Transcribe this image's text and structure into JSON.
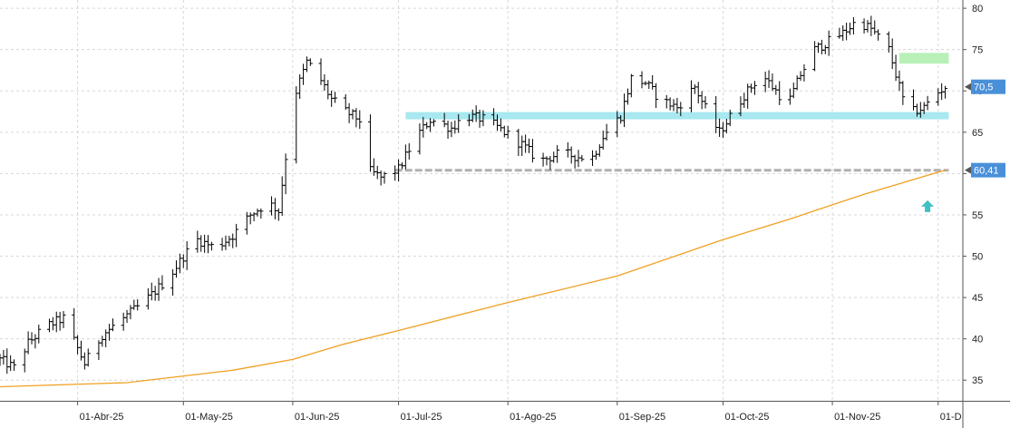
{
  "chart_data": {
    "type": "ohlc",
    "grid": true,
    "y_axis_position": "right",
    "ylim": [
      32.5,
      81
    ],
    "y_ticks": [
      35,
      40,
      45,
      50,
      55,
      60,
      65,
      70,
      75,
      80
    ],
    "x_ticks": [
      {
        "date": "2025-04-01",
        "label": "01-Abr-25"
      },
      {
        "date": "2025-05-01",
        "label": "01-May-25"
      },
      {
        "date": "2025-06-01",
        "label": "01-Jun-25"
      },
      {
        "date": "2025-07-01",
        "label": "01-Jul-25"
      },
      {
        "date": "2025-08-01",
        "label": "01-Ago-25"
      },
      {
        "date": "2025-09-01",
        "label": "01-Sep-25"
      },
      {
        "date": "2025-10-01",
        "label": "01-Oct-25"
      },
      {
        "date": "2025-11-01",
        "label": "01-Nov-25"
      },
      {
        "date": "2025-12-01",
        "label": "01-D"
      }
    ],
    "xlim": [
      "2025-03-10",
      "2025-12-08"
    ],
    "price_anchors": [
      [
        "2025-03-10",
        37.5
      ],
      [
        "2025-03-14",
        36.5
      ],
      [
        "2025-03-18",
        39.5
      ],
      [
        "2025-03-23",
        41.5
      ],
      [
        "2025-03-28",
        42.5
      ],
      [
        "2025-04-03",
        37.0
      ],
      [
        "2025-04-08",
        40.5
      ],
      [
        "2025-04-14",
        42.5
      ],
      [
        "2025-04-20",
        44.5
      ],
      [
        "2025-04-27",
        47.5
      ],
      [
        "2025-05-01",
        50.0
      ],
      [
        "2025-05-05",
        52.0
      ],
      [
        "2025-05-10",
        51.0
      ],
      [
        "2025-05-15",
        52.5
      ],
      [
        "2025-05-20",
        55.0
      ],
      [
        "2025-05-25",
        56.5
      ],
      [
        "2025-05-28",
        55.5
      ],
      [
        "2025-05-30",
        62.0
      ],
      [
        "2025-06-02",
        70.0
      ],
      [
        "2025-06-05",
        73.5
      ],
      [
        "2025-06-08",
        72.0
      ],
      [
        "2025-06-12",
        69.0
      ],
      [
        "2025-06-16",
        67.5
      ],
      [
        "2025-06-20",
        66.5
      ],
      [
        "2025-06-22",
        60.5
      ],
      [
        "2025-06-26",
        59.5
      ],
      [
        "2025-07-01",
        60.5
      ],
      [
        "2025-07-06",
        64.5
      ],
      [
        "2025-07-10",
        66.5
      ],
      [
        "2025-07-16",
        65.5
      ],
      [
        "2025-07-20",
        67.0
      ],
      [
        "2025-07-26",
        66.5
      ],
      [
        "2025-07-31",
        65.0
      ],
      [
        "2025-08-05",
        63.5
      ],
      [
        "2025-08-10",
        61.5
      ],
      [
        "2025-08-16",
        62.5
      ],
      [
        "2025-08-21",
        62.0
      ],
      [
        "2025-08-25",
        62.0
      ],
      [
        "2025-08-28",
        64.5
      ],
      [
        "2025-09-02",
        67.0
      ],
      [
        "2025-09-05",
        71.5
      ],
      [
        "2025-09-09",
        71.0
      ],
      [
        "2025-09-13",
        69.0
      ],
      [
        "2025-09-18",
        68.0
      ],
      [
        "2025-09-23",
        70.5
      ],
      [
        "2025-09-27",
        67.0
      ],
      [
        "2025-09-30",
        65.0
      ],
      [
        "2025-10-04",
        67.5
      ],
      [
        "2025-10-07",
        69.5
      ],
      [
        "2025-10-12",
        72.0
      ],
      [
        "2025-10-17",
        69.5
      ],
      [
        "2025-10-20",
        69.0
      ],
      [
        "2025-10-23",
        72.0
      ],
      [
        "2025-10-27",
        75.0
      ],
      [
        "2025-10-31",
        76.0
      ],
      [
        "2025-11-04",
        77.0
      ],
      [
        "2025-11-08",
        78.5
      ],
      [
        "2025-11-12",
        77.5
      ],
      [
        "2025-11-17",
        75.0
      ],
      [
        "2025-11-21",
        69.0
      ],
      [
        "2025-11-24",
        67.5
      ],
      [
        "2025-11-27",
        68.0
      ],
      [
        "2025-11-30",
        69.5
      ],
      [
        "2025-12-03",
        70.5
      ]
    ],
    "moving_average": [
      [
        "2025-03-10",
        34.2
      ],
      [
        "2025-04-15",
        34.7
      ],
      [
        "2025-05-15",
        36.2
      ],
      [
        "2025-06-01",
        37.5
      ],
      [
        "2025-06-15",
        39.3
      ],
      [
        "2025-07-01",
        41.0
      ],
      [
        "2025-08-01",
        44.4
      ],
      [
        "2025-09-01",
        47.6
      ],
      [
        "2025-10-01",
        52.0
      ],
      [
        "2025-10-20",
        54.5
      ],
      [
        "2025-11-10",
        57.5
      ],
      [
        "2025-12-03",
        60.41
      ]
    ],
    "ma_color": "#f0a020",
    "bar_color": "#000000",
    "support_band": {
      "start": "2025-07-03",
      "end": "2025-12-04",
      "value": 67.0,
      "color": "#a8e8f0"
    },
    "resistance_box": {
      "start": "2025-11-20",
      "end": "2025-12-04",
      "low": 73.3,
      "high": 74.6,
      "color": "#b8f0b8"
    },
    "dashed_level": {
      "start": "2025-06-30",
      "end": "2025-12-04",
      "value": 60.4,
      "color": "#b0b0b0"
    },
    "last_price_label": {
      "value": 70.5,
      "text": "70,5",
      "color": "#4a90d9"
    },
    "ma_value_label": {
      "value": 60.41,
      "text": "60,41",
      "color": "#4a90d9"
    },
    "signal_arrow": {
      "date": "2025-11-28",
      "value": 56.0,
      "direction": "up",
      "color": "#40c0c0"
    }
  }
}
